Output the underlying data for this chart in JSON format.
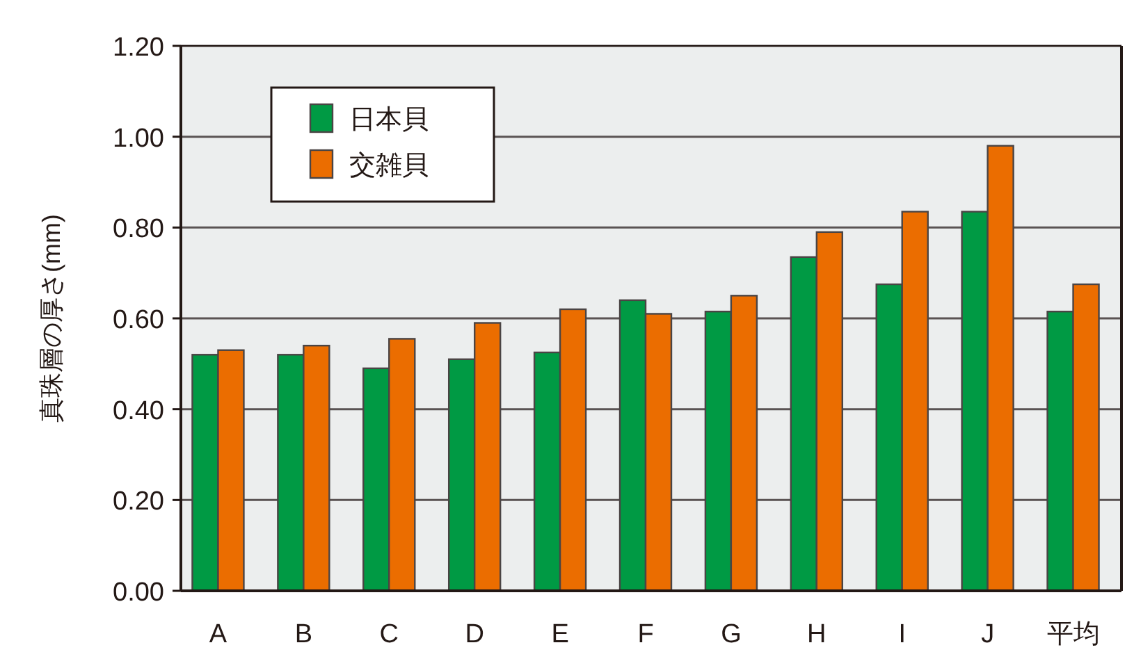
{
  "chart_data": {
    "type": "bar",
    "ylabel": "真珠層の厚さ(mm)",
    "categories": [
      "A",
      "B",
      "C",
      "D",
      "E",
      "F",
      "G",
      "H",
      "I",
      "J",
      "平均"
    ],
    "series": [
      {
        "name": "日本貝",
        "color": "#009a44",
        "values": [
          0.52,
          0.52,
          0.49,
          0.51,
          0.525,
          0.64,
          0.615,
          0.735,
          0.675,
          0.835,
          0.615
        ]
      },
      {
        "name": "交雑貝",
        "color": "#eb6d00",
        "values": [
          0.53,
          0.54,
          0.555,
          0.59,
          0.62,
          0.61,
          0.65,
          0.79,
          0.835,
          0.98,
          0.675
        ]
      }
    ],
    "ylim": [
      0,
      1.2
    ],
    "yticks": [
      {
        "value": 0,
        "label": "0.00"
      },
      {
        "value": 0.2,
        "label": "0.20"
      },
      {
        "value": 0.4,
        "label": "0.40"
      },
      {
        "value": 0.6,
        "label": "0.60"
      },
      {
        "value": 0.8,
        "label": "0.80"
      },
      {
        "value": 1,
        "label": "1.00"
      },
      {
        "value": 1.2,
        "label": "1.20"
      }
    ],
    "grid": "y",
    "legend": "top left"
  }
}
